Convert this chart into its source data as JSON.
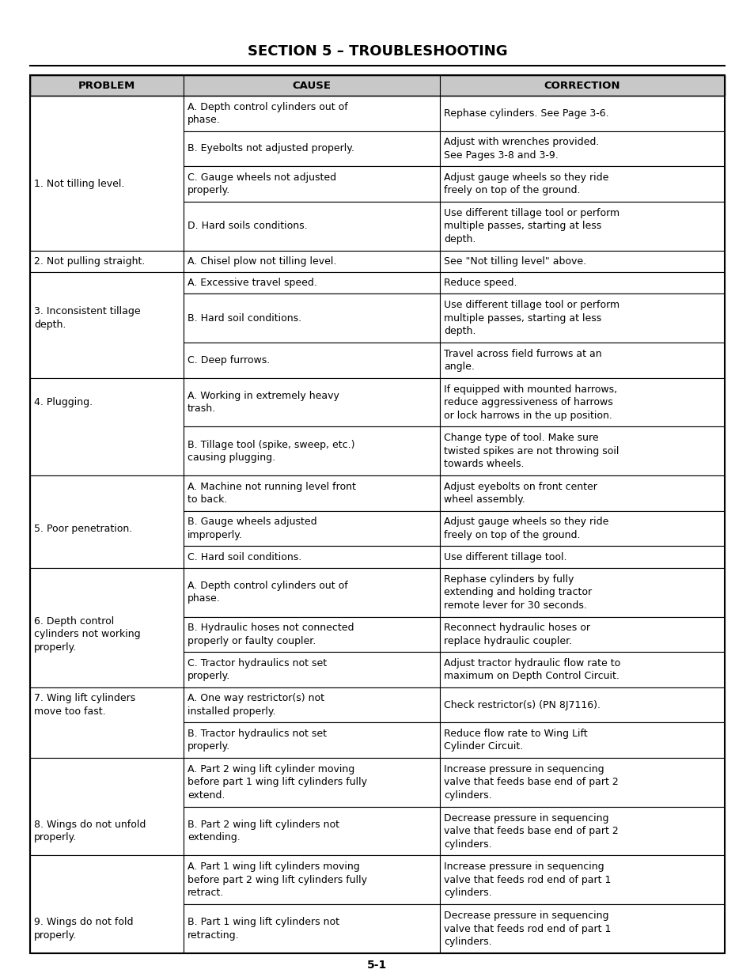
{
  "title": "SECTION 5 – TROUBLESHOOTING",
  "page_number": "5-1",
  "col_headers": [
    "PROBLEM",
    "CAUSE",
    "CORRECTION"
  ],
  "header_bg": "#c8c8c8",
  "body_bg": "#ffffff",
  "font_size": 9.0,
  "header_font_size": 9.5,
  "rows": [
    {
      "problem": "1. Not tilling level.",
      "prob_span_subrow": 2,
      "sub_rows": [
        {
          "cause": "A. Depth control cylinders out of\nphase.",
          "correction": "Rephase cylinders. See Page 3-6."
        },
        {
          "cause": "B. Eyebolts not adjusted properly.",
          "correction": "Adjust with wrenches provided.\nSee Pages 3-8 and 3-9."
        },
        {
          "cause": "C. Gauge wheels not adjusted\nproperly.",
          "correction": "Adjust gauge wheels so they ride\nfreely on top of the ground."
        },
        {
          "cause": "D. Hard soils conditions.",
          "correction": "Use different tillage tool or perform\nmultiple passes, starting at less\ndepth."
        }
      ]
    },
    {
      "problem": "2. Not pulling straight.",
      "prob_span_subrow": 0,
      "sub_rows": [
        {
          "cause": "A. Chisel plow not tilling level.",
          "correction": "See \"Not tilling level\" above."
        }
      ]
    },
    {
      "problem": "3. Inconsistent tillage\ndepth.",
      "prob_span_subrow": 1,
      "sub_rows": [
        {
          "cause": "A. Excessive travel speed.",
          "correction": "Reduce speed."
        },
        {
          "cause": "B. Hard soil conditions.",
          "correction": "Use different tillage tool or perform\nmultiple passes, starting at less\ndepth."
        },
        {
          "cause": "C. Deep furrows.",
          "correction": "Travel across field furrows at an\nangle."
        }
      ]
    },
    {
      "problem": "4. Plugging.",
      "prob_span_subrow": 0,
      "sub_rows": [
        {
          "cause": "A. Working in extremely heavy\ntrash.",
          "correction": "If equipped with mounted harrows,\nreduce aggressiveness of harrows\nor lock harrows in the up position."
        },
        {
          "cause": "B. Tillage tool (spike, sweep, etc.)\ncausing plugging.",
          "correction": "Change type of tool. Make sure\ntwisted spikes are not throwing soil\ntowards wheels."
        }
      ]
    },
    {
      "problem": "5. Poor penetration.",
      "prob_span_subrow": 1,
      "sub_rows": [
        {
          "cause": "A. Machine not running level front\nto back.",
          "correction": "Adjust eyebolts on front center\nwheel assembly."
        },
        {
          "cause": "B. Gauge wheels adjusted\nimproperly.",
          "correction": "Adjust gauge wheels so they ride\nfreely on top of the ground."
        },
        {
          "cause": "C. Hard soil conditions.",
          "correction": "Use different tillage tool."
        }
      ]
    },
    {
      "problem": "6. Depth control\ncylinders not working\nproperly.",
      "prob_span_subrow": 1,
      "sub_rows": [
        {
          "cause": "A. Depth control cylinders out of\nphase.",
          "correction": "Rephase cylinders by fully\nextending and holding tractor\nremote lever for 30 seconds."
        },
        {
          "cause": "B. Hydraulic hoses not connected\nproperly or faulty coupler.",
          "correction": "Reconnect hydraulic hoses or\nreplace hydraulic coupler."
        },
        {
          "cause": "C. Tractor hydraulics not set\nproperly.",
          "correction": "Adjust tractor hydraulic flow rate to\nmaximum on Depth Control Circuit."
        }
      ]
    },
    {
      "problem": "7. Wing lift cylinders\nmove too fast.",
      "prob_span_subrow": 0,
      "sub_rows": [
        {
          "cause": "A. One way restrictor(s) not\ninstalled properly.",
          "correction": "Check restrictor(s) (PN 8J7116)."
        },
        {
          "cause": "B. Tractor hydraulics not set\nproperly.",
          "correction": "Reduce flow rate to Wing Lift\nCylinder Circuit."
        }
      ]
    },
    {
      "problem": "8. Wings do not unfold\nproperly.",
      "prob_span_subrow": 1,
      "sub_rows": [
        {
          "cause": "A. Part 2 wing lift cylinder moving\nbefore part 1 wing lift cylinders fully\nextend.",
          "correction": "Increase pressure in sequencing\nvalve that feeds base end of part 2\ncylinders."
        },
        {
          "cause": "B. Part 2 wing lift cylinders not\nextending.",
          "correction": "Decrease pressure in sequencing\nvalve that feeds base end of part 2\ncylinders."
        }
      ]
    },
    {
      "problem": "9. Wings do not fold\nproperly.",
      "prob_span_subrow": 1,
      "sub_rows": [
        {
          "cause": "A. Part 1 wing lift cylinders moving\nbefore part 2 wing lift cylinders fully\nretract.",
          "correction": "Increase pressure in sequencing\nvalve that feeds rod end of part 1\ncylinders."
        },
        {
          "cause": "B. Part 1 wing lift cylinders not\nretracting.",
          "correction": "Decrease pressure in sequencing\nvalve that feeds rod end of part 1\ncylinders."
        }
      ]
    }
  ]
}
